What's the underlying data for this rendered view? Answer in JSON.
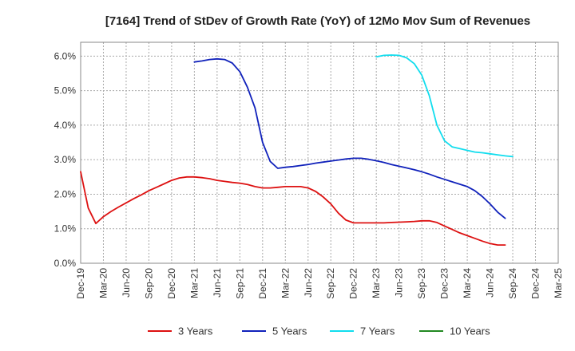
{
  "chart_data": {
    "type": "line",
    "title": "[7164]  Trend of StDev of Growth Rate (YoY) of 12Mo Mov Sum of Revenues",
    "xlabel": "",
    "ylabel": "",
    "ylim": [
      0,
      6.4
    ],
    "y_ticks": [
      0,
      1,
      2,
      3,
      4,
      5,
      6
    ],
    "y_tick_labels": [
      "0.0%",
      "1.0%",
      "2.0%",
      "3.0%",
      "4.0%",
      "5.0%",
      "6.0%"
    ],
    "x_tick_labels": [
      "Dec-19",
      "Mar-20",
      "Jun-20",
      "Sep-20",
      "Dec-20",
      "Mar-21",
      "Jun-21",
      "Sep-21",
      "Dec-21",
      "Mar-22",
      "Jun-22",
      "Sep-22",
      "Dec-22",
      "Mar-23",
      "Jun-23",
      "Sep-23",
      "Dec-23",
      "Mar-24",
      "Jun-24",
      "Sep-24",
      "Dec-24",
      "Mar-25"
    ],
    "grid": true,
    "legend_position": "bottom",
    "series": [
      {
        "name": "3 Years",
        "color": "#dd1111",
        "start_month": 0,
        "values": [
          2.65,
          1.6,
          1.15,
          1.35,
          1.5,
          1.63,
          1.75,
          1.87,
          1.98,
          2.1,
          2.2,
          2.3,
          2.4,
          2.47,
          2.5,
          2.5,
          2.48,
          2.45,
          2.4,
          2.37,
          2.34,
          2.32,
          2.28,
          2.22,
          2.18,
          2.18,
          2.2,
          2.22,
          2.22,
          2.22,
          2.18,
          2.08,
          1.92,
          1.72,
          1.45,
          1.25,
          1.17,
          1.17,
          1.17,
          1.17,
          1.17,
          1.18,
          1.19,
          1.2,
          1.21,
          1.23,
          1.23,
          1.18,
          1.08,
          0.98,
          0.88,
          0.8,
          0.72,
          0.64,
          0.57,
          0.53,
          0.53
        ]
      },
      {
        "name": "5 Years",
        "color": "#1122bb",
        "start_month": 15,
        "values": [
          5.83,
          5.86,
          5.9,
          5.92,
          5.9,
          5.8,
          5.55,
          5.1,
          4.5,
          3.5,
          2.95,
          2.75,
          2.78,
          2.8,
          2.83,
          2.86,
          2.9,
          2.93,
          2.96,
          2.99,
          3.02,
          3.04,
          3.04,
          3.01,
          2.97,
          2.92,
          2.86,
          2.81,
          2.76,
          2.71,
          2.65,
          2.58,
          2.5,
          2.43,
          2.36,
          2.29,
          2.22,
          2.1,
          1.93,
          1.72,
          1.48,
          1.3
        ]
      },
      {
        "name": "7 Years",
        "color": "#11ddee",
        "start_month": 39,
        "values": [
          5.98,
          6.02,
          6.03,
          6.02,
          5.95,
          5.78,
          5.45,
          4.85,
          4.0,
          3.55,
          3.37,
          3.32,
          3.27,
          3.22,
          3.2,
          3.17,
          3.14,
          3.11,
          3.09
        ]
      },
      {
        "name": "10 Years",
        "color": "#228822",
        "start_month": 0,
        "values": []
      }
    ]
  }
}
